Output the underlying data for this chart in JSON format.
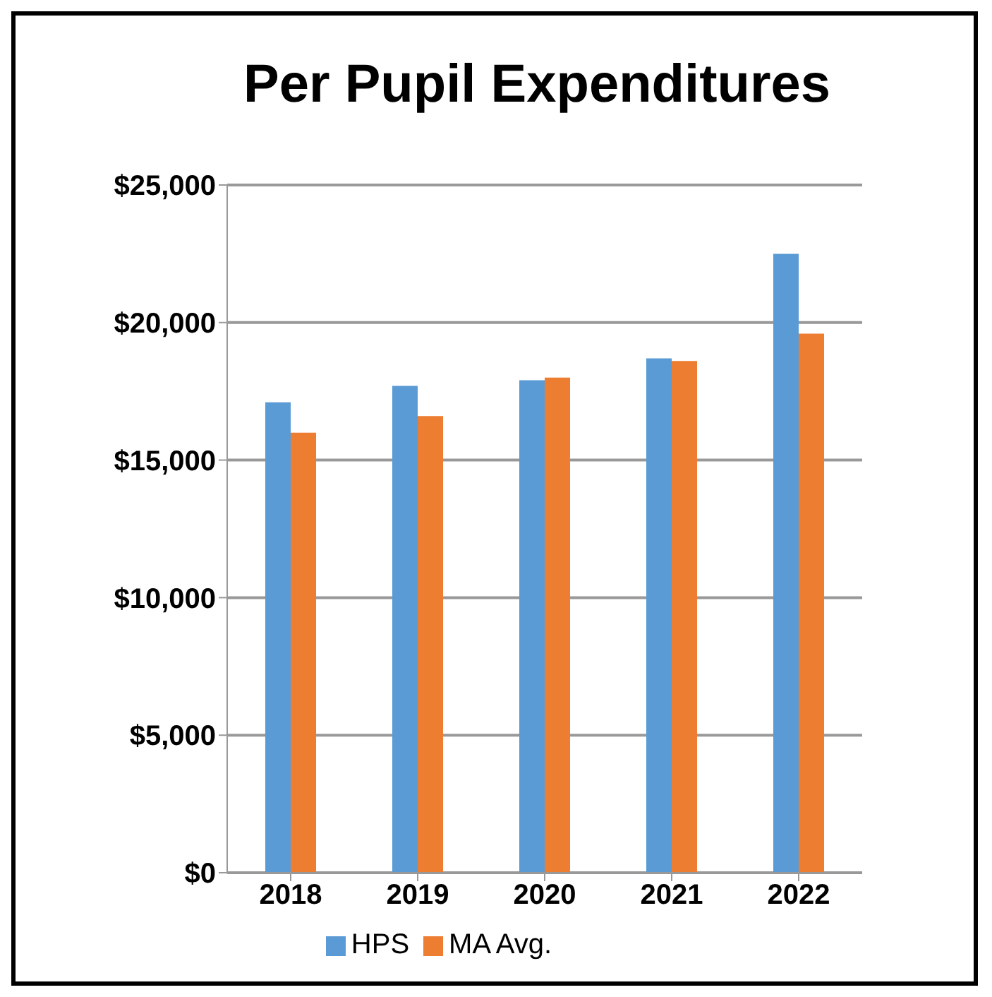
{
  "chart_data": {
    "type": "bar",
    "title": "Per Pupil Expenditures",
    "categories": [
      "2018",
      "2019",
      "2020",
      "2021",
      "2022"
    ],
    "series": [
      {
        "name": "HPS",
        "color": "#5b9bd5",
        "values": [
          17100,
          17700,
          17900,
          18700,
          22500
        ]
      },
      {
        "name": "MA Avg.",
        "color": "#ed7d31",
        "values": [
          16000,
          16600,
          18000,
          18600,
          19600
        ]
      }
    ],
    "ylim": [
      0,
      25000
    ],
    "yticks": [
      {
        "value": 0,
        "label": "$0"
      },
      {
        "value": 5000,
        "label": "$5,000"
      },
      {
        "value": 10000,
        "label": "$10,000"
      },
      {
        "value": 15000,
        "label": "$15,000"
      },
      {
        "value": 20000,
        "label": "$20,000"
      },
      {
        "value": 25000,
        "label": "$25,000"
      }
    ],
    "grid": "y",
    "legend": "bottom"
  }
}
